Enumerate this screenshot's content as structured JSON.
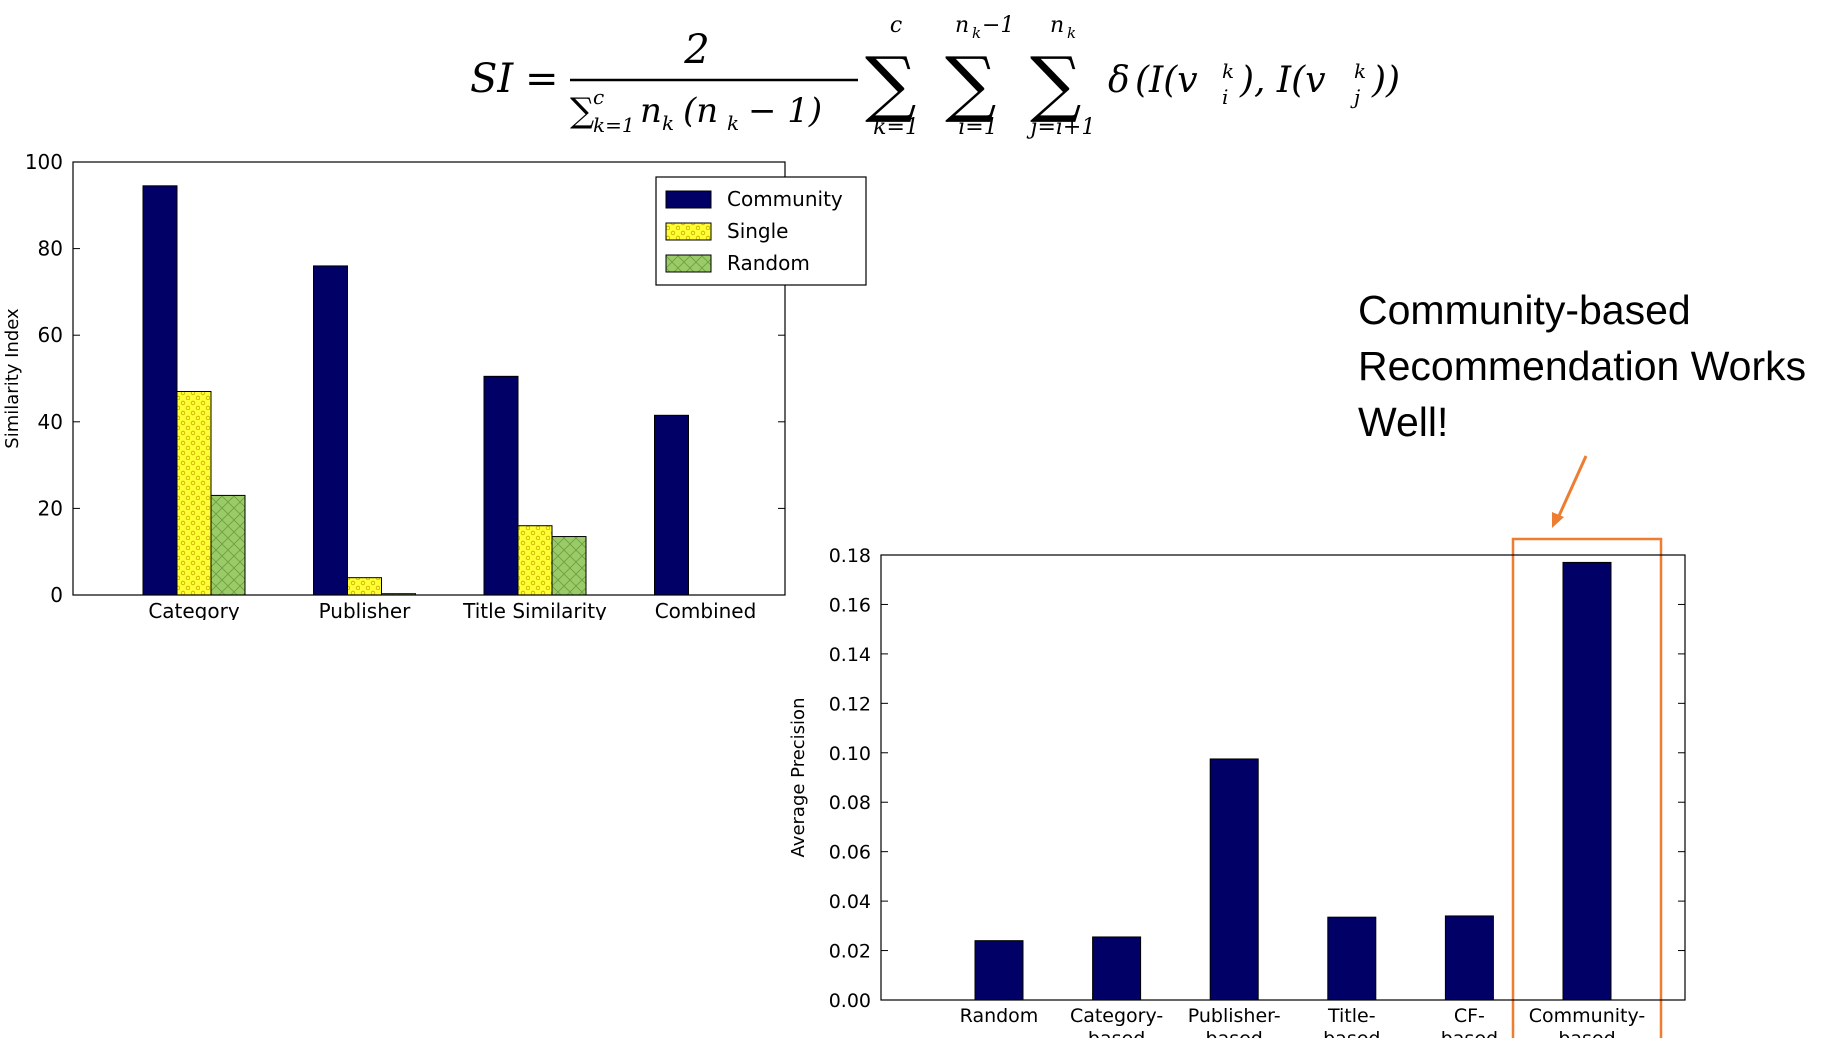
{
  "formula": {
    "lhs": "SI",
    "equals": "=",
    "numerator": "2",
    "denominator_sum": "∑",
    "denominator_sub": "k=1",
    "denominator_sup": "c",
    "denominator_rest": "n",
    "denominator_rest_sub": "k",
    "denominator_paren": "(n",
    "denominator_paren_sub": "k",
    "denominator_paren_end": "− 1)",
    "sum1_sup": "c",
    "sum1_sub": "k=1",
    "sum2_sup": "n",
    "sum2_sup_sub": "k",
    "sum2_sup_rest": "−1",
    "sum2_sub": "i=1",
    "sum3_sup": "n",
    "sum3_sup_sub": "k",
    "sum3_sub": "j=i+1",
    "delta": "δ",
    "term_open": "(I(v",
    "v_i_sub": "i",
    "v_i_sup": "k",
    "term_mid": "), I(v",
    "v_j_sub": "j",
    "v_j_sup": "k",
    "term_close": "))",
    "sigma": "∑"
  },
  "annotation": {
    "line1": "Community-based",
    "line2": "Recommendation Works",
    "line3": "Well!"
  },
  "colors": {
    "community": "#000066",
    "single": "#ffff33",
    "random": "#99cc66",
    "highlight": "#ed7d31"
  },
  "chart_data": [
    {
      "type": "bar",
      "categories": [
        "Category",
        "Publisher",
        "Title Similarity",
        "Combined"
      ],
      "series": [
        {
          "name": "Community",
          "values": [
            94.5,
            76,
            50.5,
            41.5
          ]
        },
        {
          "name": "Single",
          "values": [
            47,
            4,
            16,
            0
          ]
        },
        {
          "name": "Random",
          "values": [
            23,
            0.3,
            13.5,
            0
          ]
        }
      ],
      "ylabel": "Similarity Index",
      "xlabel": "",
      "ylim": [
        0,
        100
      ],
      "yticks": [
        "0",
        "20",
        "40",
        "60",
        "80",
        "100"
      ],
      "legend_position": "top-right",
      "grid": false
    },
    {
      "type": "bar",
      "categories": [
        "Random",
        "Category-\nbased",
        "Publisher-\nbased",
        "Title-\nbased",
        "CF-\nbased",
        "Community-\nbased"
      ],
      "values": [
        0.024,
        0.0255,
        0.0975,
        0.0335,
        0.034,
        0.177
      ],
      "ylabel": "Average Precision",
      "xlabel": "",
      "ylim": [
        0,
        0.18
      ],
      "yticks": [
        "0.00",
        "0.02",
        "0.04",
        "0.06",
        "0.08",
        "0.10",
        "0.12",
        "0.14",
        "0.16",
        "0.18"
      ],
      "highlighted_category": "Community-\nbased",
      "grid": false
    }
  ]
}
